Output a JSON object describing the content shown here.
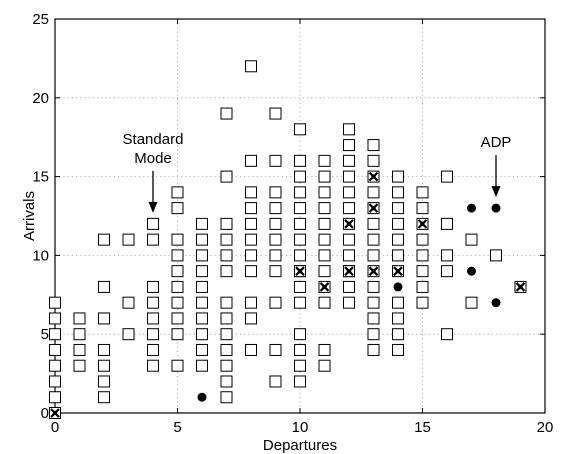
{
  "chart_data": {
    "type": "scatter",
    "title": "",
    "xlabel": "Departures",
    "ylabel": "Arrivals",
    "xlim": [
      0,
      20
    ],
    "ylim": [
      0,
      25
    ],
    "xticks": [
      0,
      5,
      10,
      15,
      20
    ],
    "yticks": [
      0,
      5,
      10,
      15,
      20,
      25
    ],
    "grid": true,
    "series": [
      {
        "marker": "open-square",
        "points": [
          [
            0,
            0
          ],
          [
            0,
            1
          ],
          [
            0,
            2
          ],
          [
            0,
            3
          ],
          [
            0,
            4
          ],
          [
            0,
            5
          ],
          [
            0,
            6
          ],
          [
            0,
            7
          ],
          [
            1,
            3
          ],
          [
            1,
            4
          ],
          [
            1,
            5
          ],
          [
            1,
            6
          ],
          [
            2,
            1
          ],
          [
            2,
            2
          ],
          [
            2,
            3
          ],
          [
            2,
            4
          ],
          [
            2,
            6
          ],
          [
            2,
            8
          ],
          [
            2,
            11
          ],
          [
            3,
            5
          ],
          [
            3,
            7
          ],
          [
            3,
            11
          ],
          [
            4,
            3
          ],
          [
            4,
            4
          ],
          [
            4,
            5
          ],
          [
            4,
            6
          ],
          [
            4,
            7
          ],
          [
            4,
            8
          ],
          [
            4,
            11
          ],
          [
            4,
            12
          ],
          [
            5,
            3
          ],
          [
            5,
            5
          ],
          [
            5,
            6
          ],
          [
            5,
            7
          ],
          [
            5,
            8
          ],
          [
            5,
            9
          ],
          [
            5,
            10
          ],
          [
            5,
            11
          ],
          [
            5,
            13
          ],
          [
            5,
            14
          ],
          [
            6,
            3
          ],
          [
            6,
            4
          ],
          [
            6,
            5
          ],
          [
            6,
            6
          ],
          [
            6,
            7
          ],
          [
            6,
            8
          ],
          [
            6,
            9
          ],
          [
            6,
            10
          ],
          [
            6,
            11
          ],
          [
            6,
            12
          ],
          [
            7,
            1
          ],
          [
            7,
            2
          ],
          [
            7,
            3
          ],
          [
            7,
            4
          ],
          [
            7,
            5
          ],
          [
            7,
            6
          ],
          [
            7,
            7
          ],
          [
            7,
            9
          ],
          [
            7,
            10
          ],
          [
            7,
            11
          ],
          [
            7,
            12
          ],
          [
            7,
            15
          ],
          [
            7,
            19
          ],
          [
            8,
            4
          ],
          [
            8,
            6
          ],
          [
            8,
            7
          ],
          [
            8,
            9
          ],
          [
            8,
            10
          ],
          [
            8,
            11
          ],
          [
            8,
            12
          ],
          [
            8,
            13
          ],
          [
            8,
            14
          ],
          [
            8,
            16
          ],
          [
            8,
            22
          ],
          [
            9,
            2
          ],
          [
            9,
            4
          ],
          [
            9,
            7
          ],
          [
            9,
            9
          ],
          [
            9,
            10
          ],
          [
            9,
            11
          ],
          [
            9,
            12
          ],
          [
            9,
            13
          ],
          [
            9,
            14
          ],
          [
            9,
            16
          ],
          [
            9,
            19
          ],
          [
            10,
            2
          ],
          [
            10,
            3
          ],
          [
            10,
            4
          ],
          [
            10,
            5
          ],
          [
            10,
            7
          ],
          [
            10,
            8
          ],
          [
            10,
            9
          ],
          [
            10,
            10
          ],
          [
            10,
            11
          ],
          [
            10,
            12
          ],
          [
            10,
            13
          ],
          [
            10,
            14
          ],
          [
            10,
            15
          ],
          [
            10,
            16
          ],
          [
            10,
            18
          ],
          [
            11,
            3
          ],
          [
            11,
            4
          ],
          [
            11,
            7
          ],
          [
            11,
            9
          ],
          [
            11,
            10
          ],
          [
            11,
            11
          ],
          [
            11,
            12
          ],
          [
            11,
            13
          ],
          [
            11,
            14
          ],
          [
            11,
            15
          ],
          [
            11,
            16
          ],
          [
            12,
            7
          ],
          [
            12,
            8
          ],
          [
            12,
            9
          ],
          [
            12,
            10
          ],
          [
            12,
            11
          ],
          [
            12,
            13
          ],
          [
            12,
            14
          ],
          [
            12,
            15
          ],
          [
            12,
            16
          ],
          [
            12,
            17
          ],
          [
            12,
            18
          ],
          [
            13,
            4
          ],
          [
            13,
            5
          ],
          [
            13,
            6
          ],
          [
            13,
            7
          ],
          [
            13,
            8
          ],
          [
            13,
            10
          ],
          [
            13,
            11
          ],
          [
            13,
            12
          ],
          [
            13,
            14
          ],
          [
            13,
            16
          ],
          [
            13,
            17
          ],
          [
            14,
            4
          ],
          [
            14,
            5
          ],
          [
            14,
            6
          ],
          [
            14,
            7
          ],
          [
            14,
            10
          ],
          [
            14,
            11
          ],
          [
            14,
            12
          ],
          [
            14,
            13
          ],
          [
            14,
            14
          ],
          [
            14,
            15
          ],
          [
            15,
            7
          ],
          [
            15,
            8
          ],
          [
            15,
            9
          ],
          [
            15,
            10
          ],
          [
            15,
            11
          ],
          [
            15,
            13
          ],
          [
            15,
            14
          ],
          [
            16,
            5
          ],
          [
            16,
            9
          ],
          [
            16,
            10
          ],
          [
            16,
            12
          ],
          [
            16,
            15
          ],
          [
            17,
            7
          ],
          [
            17,
            11
          ],
          [
            18,
            10
          ]
        ]
      },
      {
        "marker": "filled-circle",
        "points": [
          [
            6,
            1
          ],
          [
            14,
            8
          ],
          [
            17,
            9
          ],
          [
            17,
            13
          ],
          [
            18,
            7
          ],
          [
            18,
            13
          ]
        ]
      },
      {
        "marker": "square-with-x",
        "points": [
          [
            0,
            0
          ],
          [
            10,
            9
          ],
          [
            11,
            8
          ],
          [
            12,
            9
          ],
          [
            12,
            12
          ],
          [
            13,
            9
          ],
          [
            13,
            13
          ],
          [
            13,
            15
          ],
          [
            14,
            9
          ],
          [
            15,
            12
          ],
          [
            19,
            8
          ]
        ]
      }
    ],
    "annotations": [
      {
        "lines": [
          "Standard",
          "Mode"
        ],
        "points_to": [
          4,
          12
        ]
      },
      {
        "lines": [
          "ADP"
        ],
        "points_to": [
          18,
          13
        ]
      }
    ]
  }
}
